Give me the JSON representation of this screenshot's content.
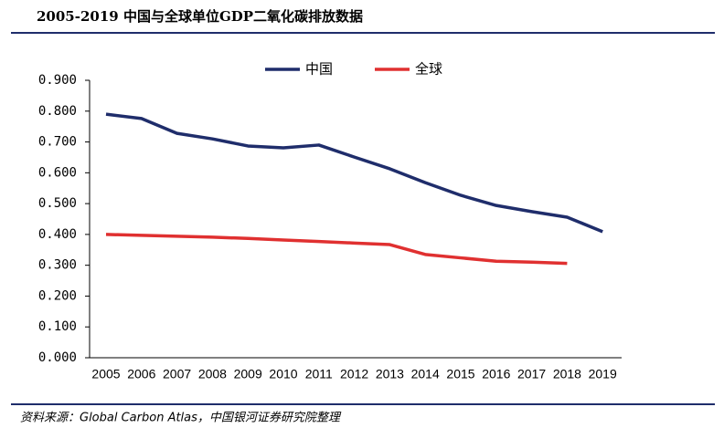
{
  "chart_data": {
    "type": "line",
    "title": "2005-2019 中国与全球单位GDP二氧化碳排放数据",
    "source": "资料来源：Global Carbon Atlas，中国银河证券研究院整理",
    "categories": [
      "2005",
      "2006",
      "2007",
      "2008",
      "2009",
      "2010",
      "2011",
      "2012",
      "2013",
      "2014",
      "2015",
      "2016",
      "2017",
      "2018",
      "2019"
    ],
    "series": [
      {
        "name": "中国",
        "color": "#1f2d6b",
        "values": [
          0.79,
          0.776,
          0.728,
          0.71,
          0.687,
          0.681,
          0.69,
          0.651,
          0.613,
          0.568,
          0.527,
          0.494,
          0.474,
          0.456,
          0.409
        ]
      },
      {
        "name": "全球",
        "color": "#e03030",
        "values": [
          0.4,
          0.397,
          0.394,
          0.391,
          0.387,
          0.382,
          0.377,
          0.372,
          0.367,
          0.335,
          0.324,
          0.313,
          0.31,
          0.306,
          null
        ]
      }
    ],
    "ylim": [
      0,
      0.9
    ],
    "yticks": [
      {
        "value": 0,
        "label": "0.000"
      },
      {
        "value": 0.1,
        "label": "0.100"
      },
      {
        "value": 0.2,
        "label": "0.200"
      },
      {
        "value": 0.3,
        "label": "0.300"
      },
      {
        "value": 0.4,
        "label": "0.400"
      },
      {
        "value": 0.5,
        "label": "0.500"
      },
      {
        "value": 0.6,
        "label": "0.600"
      },
      {
        "value": 0.7,
        "label": "0.700"
      },
      {
        "value": 0.8,
        "label": "0.800"
      },
      {
        "value": 0.9,
        "label": "0.900"
      }
    ],
    "legend": "top"
  }
}
